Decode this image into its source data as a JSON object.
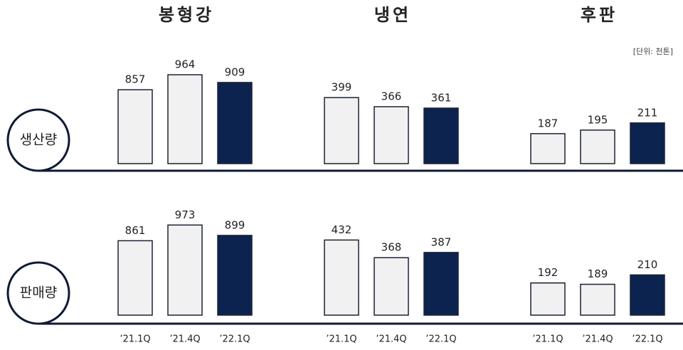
{
  "columns": [
    "봉형강",
    "냉연",
    "후판"
  ],
  "rows": [
    "생산량",
    "판매량"
  ],
  "unit": "[단위: 천톤]",
  "chart_data": [
    {
      "type": "bar",
      "values": [
        857,
        964,
        909
      ],
      "colors": [
        "#f1f1f1",
        "#f1f1f1",
        "#0c2350"
      ],
      "ylim": [
        330,
        1000
      ]
    },
    {
      "type": "bar",
      "values": [
        399,
        366,
        361
      ],
      "colors": [
        "#f1f1f1",
        "#f1f1f1",
        "#0c2350"
      ],
      "ylim": [
        160,
        500
      ]
    },
    {
      "type": "bar",
      "values": [
        187,
        195,
        211
      ],
      "colors": [
        "#f1f1f1",
        "#f1f1f1",
        "#0c2350"
      ],
      "ylim": [
        120,
        330
      ]
    },
    {
      "type": "bar",
      "categories": [
        "’21.1Q",
        "’21.4Q",
        "’22.1Q"
      ],
      "values": [
        861,
        973,
        899
      ],
      "colors": [
        "#f1f1f1",
        "#f1f1f1",
        "#0c2350"
      ],
      "ylim": [
        330,
        1000
      ]
    },
    {
      "type": "bar",
      "categories": [
        "’21.1Q",
        "’21.4Q",
        "’22.1Q"
      ],
      "values": [
        432,
        368,
        387
      ],
      "colors": [
        "#f1f1f1",
        "#f1f1f1",
        "#0c2350"
      ],
      "ylim": [
        160,
        500
      ]
    },
    {
      "type": "bar",
      "categories": [
        "’21.1Q",
        "’21.4Q",
        "’22.1Q"
      ],
      "values": [
        192,
        189,
        210
      ],
      "colors": [
        "#f1f1f1",
        "#f1f1f1",
        "#0c2350"
      ],
      "ylim": [
        120,
        330
      ]
    }
  ]
}
